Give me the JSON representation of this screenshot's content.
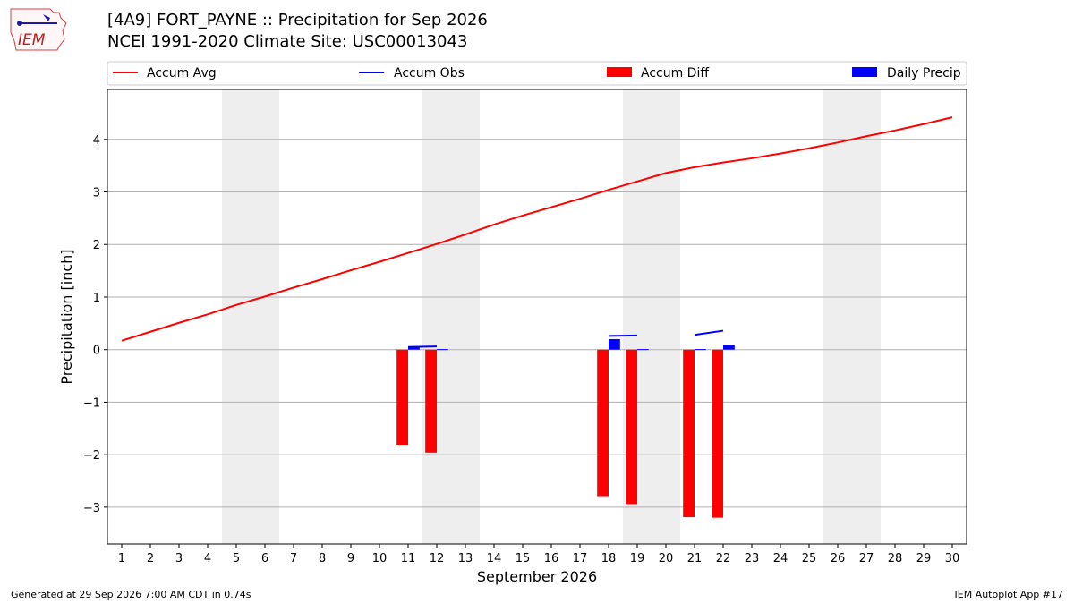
{
  "header": {
    "title_line1": "[4A9] FORT_PAYNE :: Precipitation for Sep 2026",
    "title_line2": "NCEI 1991-2020 Climate Site: USC00013043"
  },
  "logo": {
    "text": "IEM"
  },
  "footer": {
    "generated": "Generated at 29 Sep 2026 7:00 AM CDT in 0.74s",
    "app": "IEM Autoplot App #17"
  },
  "colors": {
    "avg": "#ff0000",
    "obs": "#0000ff",
    "diff": "#ff0000",
    "daily": "#0000ff",
    "weekend": "#eeeeee",
    "grid": "#b0b0b0"
  },
  "chart_data": {
    "type": "bar",
    "xlabel": "September 2026",
    "ylabel": "Precipitation [inch]",
    "xlim": [
      0.5,
      30.5
    ],
    "ylim": [
      -3.7,
      4.95
    ],
    "yticks": [
      -3,
      -2,
      -1,
      0,
      1,
      2,
      3,
      4
    ],
    "ytick_labels": [
      "−3",
      "−2",
      "−1",
      "0",
      "1",
      "2",
      "3",
      "4"
    ],
    "days": [
      1,
      2,
      3,
      4,
      5,
      6,
      7,
      8,
      9,
      10,
      11,
      12,
      13,
      14,
      15,
      16,
      17,
      18,
      19,
      20,
      21,
      22,
      23,
      24,
      25,
      26,
      27,
      28,
      29,
      30
    ],
    "grid": "horizontal",
    "legend_placement": "top",
    "weekend_spans": [
      [
        4.5,
        6.5
      ],
      [
        11.5,
        13.5
      ],
      [
        18.5,
        20.5
      ],
      [
        25.5,
        27.5
      ]
    ],
    "legend": [
      "Accum Avg",
      "Accum Obs",
      "Accum Diff",
      "Daily Precip"
    ],
    "series": [
      {
        "name": "Accum Avg",
        "type": "line",
        "x": [
          1,
          2,
          3,
          4,
          5,
          6,
          7,
          8,
          9,
          10,
          11,
          12,
          13,
          14,
          15,
          16,
          17,
          18,
          19,
          20,
          21,
          22,
          23,
          24,
          25,
          26,
          27,
          28,
          29,
          30
        ],
        "values": [
          0.17,
          0.34,
          0.51,
          0.67,
          0.85,
          1.01,
          1.18,
          1.34,
          1.51,
          1.67,
          1.84,
          2.01,
          2.19,
          2.38,
          2.55,
          2.71,
          2.87,
          3.04,
          3.2,
          3.36,
          3.47,
          3.56,
          3.64,
          3.73,
          3.83,
          3.94,
          4.06,
          4.17,
          4.29,
          4.42
        ]
      },
      {
        "name": "Accum Obs",
        "type": "line",
        "segments": [
          {
            "x": [
              11,
              12
            ],
            "values": [
              0.05,
              0.06
            ]
          },
          {
            "x": [
              18,
              19
            ],
            "values": [
              0.26,
              0.27
            ]
          },
          {
            "x": [
              21,
              22
            ],
            "values": [
              0.28,
              0.36
            ]
          }
        ]
      },
      {
        "name": "Accum Diff",
        "type": "bar",
        "x": [
          11,
          12,
          18,
          19,
          21,
          22
        ],
        "values": [
          -1.81,
          -1.96,
          -2.79,
          -2.94,
          -3.19,
          -3.2
        ]
      },
      {
        "name": "Daily Precip",
        "type": "bar",
        "x": [
          11,
          12,
          18,
          19,
          21,
          22
        ],
        "values": [
          0.05,
          0.01,
          0.2,
          0.01,
          0.01,
          0.08
        ]
      }
    ]
  }
}
